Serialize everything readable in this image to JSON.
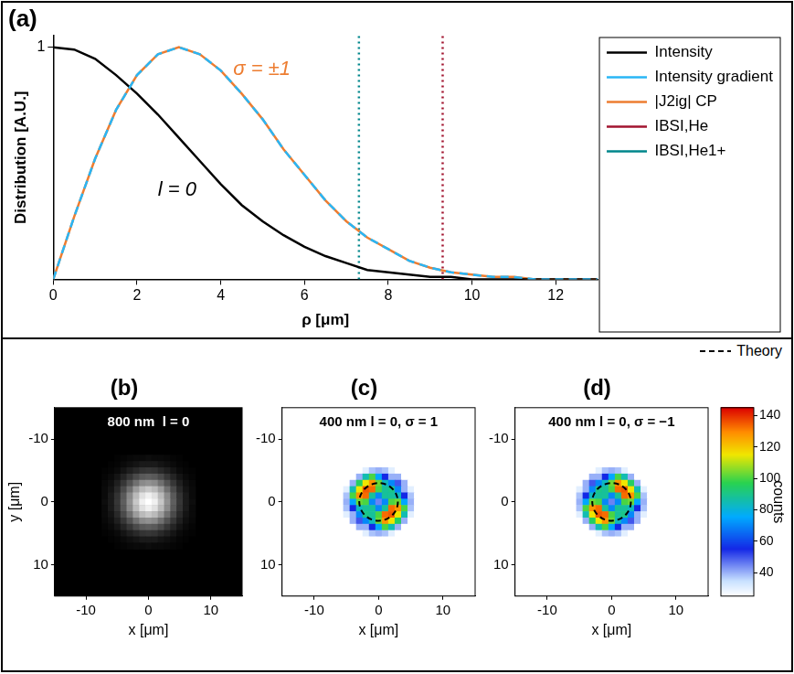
{
  "chart_data": [
    {
      "type": "line",
      "title": "(a)",
      "x_label": "ρ [μm]",
      "y_label": "Distribution [A.U.]",
      "xlim": [
        0,
        13
      ],
      "xticks": [
        0,
        2,
        4,
        6,
        8,
        10,
        12
      ],
      "ylim": [
        0,
        1.05
      ],
      "yticks": [
        1
      ],
      "grid": false,
      "legend": "right",
      "x": [
        0,
        0.5,
        1,
        1.5,
        2,
        2.5,
        3,
        3.5,
        4,
        4.5,
        5,
        5.5,
        6,
        6.5,
        7,
        7.5,
        8,
        8.5,
        9,
        9.5,
        10,
        10.5,
        11,
        11.5,
        12,
        12.5,
        13
      ],
      "series": [
        {
          "name": "Intensity",
          "color": "#000000",
          "line_style": "solid",
          "values": [
            1.0,
            0.99,
            0.95,
            0.88,
            0.8,
            0.71,
            0.61,
            0.51,
            0.41,
            0.32,
            0.25,
            0.19,
            0.14,
            0.1,
            0.07,
            0.04,
            0.03,
            0.02,
            0.01,
            0.01,
            0,
            0,
            0,
            0,
            0,
            0,
            0
          ]
        },
        {
          "name": "Intensity gradient",
          "color": "#29b6f6",
          "line_style": "dashed",
          "values": [
            0,
            0.27,
            0.52,
            0.73,
            0.88,
            0.97,
            1.0,
            0.97,
            0.9,
            0.8,
            0.69,
            0.56,
            0.45,
            0.34,
            0.25,
            0.18,
            0.13,
            0.08,
            0.05,
            0.03,
            0.02,
            0.01,
            0.01,
            0,
            0,
            0,
            0
          ]
        },
        {
          "name": "|J2ig| CP",
          "color": "#ed7d31",
          "line_style": "solid",
          "values": [
            0,
            0.27,
            0.52,
            0.73,
            0.88,
            0.97,
            1.0,
            0.97,
            0.9,
            0.8,
            0.69,
            0.56,
            0.45,
            0.34,
            0.25,
            0.18,
            0.13,
            0.08,
            0.05,
            0.03,
            0.02,
            0.01,
            0.01,
            0,
            0,
            0,
            0
          ]
        }
      ],
      "vlines": [
        {
          "name": "IBSI,He",
          "color": "#a2142f",
          "line_style": "dotted",
          "x": 9.3
        },
        {
          "name": "IBSI,He1+",
          "color": "#00868b",
          "line_style": "dotted",
          "x": 7.3
        }
      ],
      "annotations": [
        {
          "text": "σ = ±1",
          "x": 4.3,
          "y": 0.88,
          "color": "#ed7d31"
        },
        {
          "text": "l = 0",
          "x": 2.5,
          "y": 0.36,
          "color": "#000000"
        }
      ]
    },
    {
      "type": "heatmap",
      "title": "(b)",
      "subtitle": "800 nm  l = 0",
      "x_label": "x [μm]",
      "y_label": "y [μm]",
      "xlim": [
        -15,
        15
      ],
      "xticks": [
        -10,
        0,
        10
      ],
      "ylim": [
        -15,
        15
      ],
      "yticks": [
        -10,
        0,
        10
      ],
      "color": "gray",
      "zlim": [
        0,
        100
      ],
      "x": [
        -7,
        -6,
        -5,
        -4,
        -3,
        -2,
        -1,
        0,
        1,
        2,
        3,
        4,
        5,
        6,
        7
      ],
      "y": [
        -7,
        -6,
        -5,
        -4,
        -3,
        -2,
        -1,
        0,
        1,
        2,
        3,
        4,
        5,
        6,
        7
      ],
      "z": [
        [
          0,
          0,
          1,
          2,
          3,
          4,
          4,
          5,
          4,
          4,
          3,
          2,
          1,
          0,
          0
        ],
        [
          0,
          1,
          2,
          4,
          6,
          8,
          10,
          10,
          10,
          8,
          6,
          4,
          2,
          1,
          0
        ],
        [
          1,
          2,
          4,
          8,
          12,
          16,
          20,
          21,
          20,
          16,
          12,
          8,
          4,
          2,
          1
        ],
        [
          2,
          4,
          8,
          14,
          21,
          29,
          35,
          37,
          35,
          29,
          21,
          14,
          8,
          4,
          2
        ],
        [
          3,
          6,
          12,
          21,
          32,
          44,
          54,
          57,
          54,
          44,
          32,
          21,
          12,
          6,
          3
        ],
        [
          4,
          8,
          16,
          29,
          44,
          61,
          73,
          78,
          73,
          61,
          44,
          29,
          16,
          8,
          4
        ],
        [
          4,
          10,
          20,
          35,
          54,
          73,
          88,
          94,
          88,
          73,
          54,
          35,
          20,
          10,
          4
        ],
        [
          5,
          10,
          21,
          37,
          57,
          78,
          94,
          100,
          94,
          78,
          57,
          37,
          21,
          10,
          5
        ],
        [
          4,
          10,
          20,
          35,
          54,
          73,
          88,
          94,
          88,
          73,
          54,
          35,
          20,
          10,
          4
        ],
        [
          4,
          8,
          16,
          29,
          44,
          61,
          73,
          78,
          73,
          61,
          44,
          29,
          16,
          8,
          4
        ],
        [
          3,
          6,
          12,
          21,
          32,
          44,
          54,
          57,
          54,
          44,
          32,
          21,
          12,
          6,
          3
        ],
        [
          2,
          4,
          8,
          14,
          21,
          29,
          35,
          37,
          35,
          29,
          21,
          14,
          8,
          4,
          2
        ],
        [
          1,
          2,
          4,
          8,
          12,
          16,
          20,
          21,
          20,
          16,
          12,
          8,
          4,
          2,
          1
        ],
        [
          0,
          1,
          2,
          4,
          6,
          8,
          10,
          10,
          10,
          8,
          6,
          4,
          2,
          1,
          0
        ],
        [
          0,
          0,
          1,
          2,
          3,
          4,
          4,
          5,
          4,
          4,
          3,
          2,
          1,
          0,
          0
        ]
      ]
    },
    {
      "type": "heatmap",
      "title": "(c)",
      "subtitle": "400 nm l = 0, σ = 1",
      "x_label": "x [μm]",
      "xlim": [
        -15,
        15
      ],
      "xticks": [
        -10,
        0,
        10
      ],
      "ylim": [
        -15,
        15
      ],
      "yticks": [
        -10,
        0,
        10
      ],
      "color": "jet",
      "zlim": [
        25,
        145
      ],
      "theory": {
        "name": "Theory",
        "radius": 3.0
      },
      "x": [
        -6,
        -5,
        -4,
        -3,
        -2,
        -1,
        0,
        1,
        2,
        3,
        4,
        5,
        6
      ],
      "y": [
        -6,
        -5,
        -4,
        -3,
        -2,
        -1,
        0,
        1,
        2,
        3,
        4,
        5,
        6
      ],
      "z": [
        [
          0,
          0,
          0,
          0,
          0,
          0,
          5,
          0,
          0,
          0,
          0,
          0,
          0
        ],
        [
          0,
          0,
          0,
          15,
          30,
          38,
          40,
          38,
          30,
          15,
          0,
          0,
          0
        ],
        [
          0,
          0,
          22,
          40,
          85,
          100,
          75,
          55,
          40,
          40,
          22,
          0,
          0
        ],
        [
          0,
          15,
          40,
          95,
          115,
          128,
          103,
          83,
          70,
          50,
          40,
          15,
          0
        ],
        [
          0,
          30,
          85,
          115,
          135,
          133,
          100,
          88,
          90,
          70,
          40,
          30,
          0
        ],
        [
          0,
          38,
          100,
          128,
          133,
          88,
          70,
          88,
          88,
          83,
          55,
          38,
          0
        ],
        [
          5,
          40,
          75,
          103,
          100,
          70,
          45,
          70,
          100,
          103,
          75,
          40,
          5
        ],
        [
          0,
          38,
          55,
          83,
          88,
          88,
          70,
          88,
          133,
          128,
          100,
          38,
          0
        ],
        [
          0,
          30,
          40,
          70,
          90,
          88,
          100,
          133,
          135,
          115,
          85,
          30,
          0
        ],
        [
          0,
          15,
          40,
          50,
          70,
          83,
          103,
          128,
          115,
          95,
          40,
          15,
          0
        ],
        [
          0,
          0,
          22,
          40,
          40,
          55,
          75,
          100,
          85,
          40,
          22,
          0,
          0
        ],
        [
          0,
          0,
          0,
          15,
          30,
          38,
          40,
          38,
          30,
          15,
          0,
          0,
          0
        ],
        [
          0,
          0,
          0,
          0,
          0,
          0,
          5,
          0,
          0,
          0,
          0,
          0,
          0
        ]
      ]
    },
    {
      "type": "heatmap",
      "title": "(d)",
      "subtitle": "400 nm l = 0, σ = −1",
      "x_label": "x [μm]",
      "xlim": [
        -15,
        15
      ],
      "xticks": [
        -10,
        0,
        10
      ],
      "ylim": [
        -15,
        15
      ],
      "yticks": [
        -10,
        0,
        10
      ],
      "color": "jet",
      "zlim": [
        25,
        145
      ],
      "theory": {
        "name": "Theory",
        "radius": 3.0
      },
      "colorbar": {
        "label": "counts",
        "range": [
          25,
          145
        ],
        "ticks": [
          40,
          60,
          80,
          100,
          120,
          140
        ]
      },
      "x": [
        -6,
        -5,
        -4,
        -3,
        -2,
        -1,
        0,
        1,
        2,
        3,
        4,
        5,
        6
      ],
      "y": [
        -6,
        -5,
        -4,
        -3,
        -2,
        -1,
        0,
        1,
        2,
        3,
        4,
        5,
        6
      ],
      "z": [
        [
          0,
          0,
          0,
          0,
          0,
          0,
          5,
          0,
          0,
          0,
          0,
          0,
          0
        ],
        [
          0,
          0,
          0,
          15,
          30,
          38,
          40,
          38,
          30,
          15,
          0,
          0,
          0
        ],
        [
          0,
          0,
          22,
          40,
          40,
          55,
          75,
          100,
          85,
          40,
          22,
          0,
          0
        ],
        [
          0,
          15,
          40,
          50,
          70,
          83,
          103,
          128,
          115,
          95,
          40,
          15,
          0
        ],
        [
          0,
          30,
          40,
          70,
          90,
          88,
          100,
          133,
          135,
          115,
          85,
          30,
          0
        ],
        [
          0,
          38,
          55,
          83,
          88,
          88,
          70,
          88,
          133,
          128,
          100,
          38,
          0
        ],
        [
          5,
          40,
          75,
          103,
          100,
          70,
          45,
          70,
          100,
          103,
          75,
          40,
          5
        ],
        [
          0,
          38,
          100,
          128,
          133,
          88,
          70,
          88,
          88,
          83,
          55,
          38,
          0
        ],
        [
          0,
          30,
          85,
          115,
          135,
          133,
          100,
          88,
          90,
          70,
          40,
          30,
          0
        ],
        [
          0,
          15,
          40,
          95,
          115,
          128,
          103,
          83,
          70,
          50,
          40,
          15,
          0
        ],
        [
          0,
          0,
          22,
          40,
          85,
          100,
          75,
          55,
          40,
          40,
          22,
          0,
          0
        ],
        [
          0,
          0,
          0,
          15,
          30,
          38,
          40,
          38,
          30,
          15,
          0,
          0,
          0
        ],
        [
          0,
          0,
          0,
          0,
          0,
          0,
          5,
          0,
          0,
          0,
          0,
          0,
          0
        ]
      ]
    }
  ]
}
